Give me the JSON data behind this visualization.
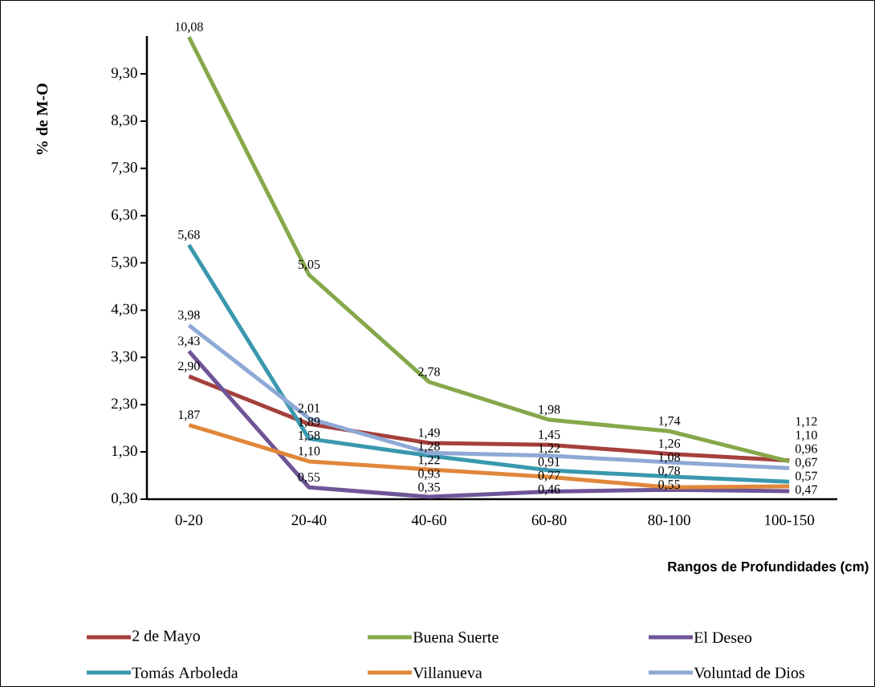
{
  "chart_data": {
    "type": "line",
    "xlabel": "Rangos de Profundidades (cm)",
    "ylabel": "%    de M-O",
    "categories": [
      "0-20",
      "20-40",
      "40-60",
      "60-80",
      "80-100",
      "100-150"
    ],
    "ylim": [
      0.3,
      10.1
    ],
    "yticks": [
      {
        "value": 0.3,
        "label": "0,30"
      },
      {
        "value": 1.3,
        "label": "1,30"
      },
      {
        "value": 2.3,
        "label": "2,30"
      },
      {
        "value": 3.3,
        "label": "3,30"
      },
      {
        "value": 4.3,
        "label": "4,30"
      },
      {
        "value": 5.3,
        "label": "5,30"
      },
      {
        "value": 6.3,
        "label": "6,30"
      },
      {
        "value": 7.3,
        "label": "7,30"
      },
      {
        "value": 8.3,
        "label": "8,30"
      },
      {
        "value": 9.3,
        "label": "9,30"
      }
    ],
    "legend": "bottom",
    "series": [
      {
        "name": "2 de Mayo",
        "color": "#a5403c",
        "values": [
          2.9,
          1.89,
          1.49,
          1.45,
          1.26,
          1.12
        ],
        "value_labels": [
          "2,90",
          "1,89",
          "1,49",
          "1,45",
          "1,26",
          "1,12"
        ]
      },
      {
        "name": "Buena Suerte",
        "color": "#86a84a",
        "values": [
          10.08,
          5.05,
          2.78,
          1.98,
          1.74,
          1.1
        ],
        "value_labels": [
          "10,08",
          "5,05",
          "2,78",
          "1,98",
          "1,74",
          "1,10"
        ]
      },
      {
        "name": "El Deseo",
        "color": "#6f5597",
        "values": [
          3.43,
          0.55,
          0.35,
          0.46,
          0.5,
          0.47
        ],
        "value_labels": [
          "3,43",
          "0,55",
          "0,35",
          "0,46",
          null,
          "0,47"
        ]
      },
      {
        "name": "Tomás Arboleda",
        "color": "#3a98ae",
        "values": [
          5.68,
          1.58,
          1.22,
          0.91,
          0.78,
          0.67
        ],
        "value_labels": [
          "5,68",
          "1,58",
          "1,22",
          "0,91",
          "0,78",
          "0,67"
        ]
      },
      {
        "name": "Villanueva",
        "color": "#e0873a",
        "values": [
          1.87,
          1.1,
          0.93,
          0.77,
          0.55,
          0.57
        ],
        "value_labels": [
          "1,87",
          "1,10",
          "0,93",
          "0,77",
          "0,55",
          "0,57"
        ]
      },
      {
        "name": "Voluntad de Dios",
        "color": "#8fa9d6",
        "values": [
          3.98,
          2.01,
          1.28,
          1.22,
          1.08,
          0.96
        ],
        "value_labels": [
          "3,98",
          "2,01",
          "1,28",
          "1,22",
          "1,08",
          "0,96"
        ]
      }
    ]
  }
}
